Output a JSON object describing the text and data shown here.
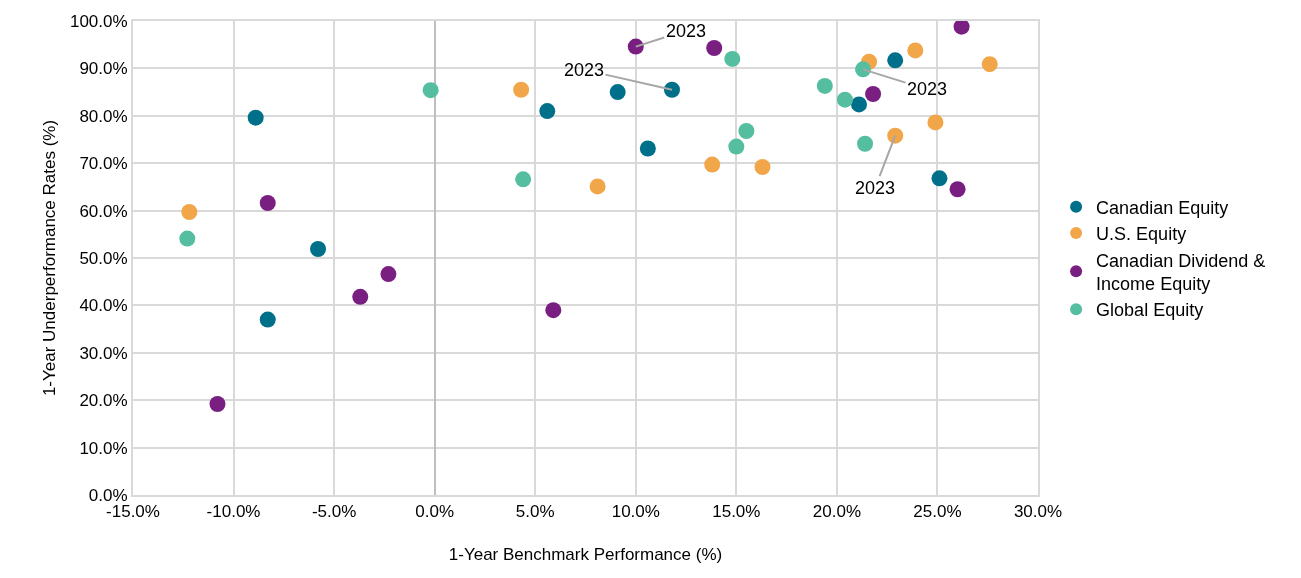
{
  "chart_data": {
    "type": "scatter",
    "xlabel": "1-Year Benchmark Performance (%)",
    "ylabel": "1-Year Underperformance Rates (%)",
    "xlim": [
      -15,
      30
    ],
    "ylim": [
      0,
      100
    ],
    "xticks": [
      {
        "value": -15,
        "label": "-15.0%"
      },
      {
        "value": -10,
        "label": "-10.0%"
      },
      {
        "value": -5,
        "label": "-5.0%"
      },
      {
        "value": 0,
        "label": "0.0%"
      },
      {
        "value": 5,
        "label": "5.0%"
      },
      {
        "value": 10,
        "label": "10.0%"
      },
      {
        "value": 15,
        "label": "15.0%"
      },
      {
        "value": 20,
        "label": "20.0%"
      },
      {
        "value": 25,
        "label": "25.0%"
      },
      {
        "value": 30,
        "label": "30.0%"
      }
    ],
    "yticks": [
      {
        "value": 0,
        "label": "0.0%"
      },
      {
        "value": 10,
        "label": "10.0%"
      },
      {
        "value": 20,
        "label": "20.0%"
      },
      {
        "value": 30,
        "label": "30.0%"
      },
      {
        "value": 40,
        "label": "40.0%"
      },
      {
        "value": 50,
        "label": "50.0%"
      },
      {
        "value": 60,
        "label": "60.0%"
      },
      {
        "value": 70,
        "label": "70.0%"
      },
      {
        "value": 80,
        "label": "80.0%"
      },
      {
        "value": 90,
        "label": "90.0%"
      },
      {
        "value": 100,
        "label": "100.0%"
      }
    ],
    "grid": true,
    "legend": "right",
    "marker": "circle",
    "series": [
      {
        "name": "Canadian Equity",
        "color": "#00708a",
        "x": [
          -8.9,
          -8.3,
          -5.8,
          5.6,
          9.1,
          10.6,
          11.8,
          21.1,
          22.9,
          25.1
        ],
        "values": [
          79.6,
          37.0,
          51.9,
          81.0,
          85.0,
          73.1,
          85.5,
          82.4,
          91.7,
          66.8
        ]
      },
      {
        "name": "U.S. Equity",
        "color": "#f2a64a",
        "x": [
          -12.2,
          4.3,
          8.1,
          13.8,
          16.3,
          21.6,
          22.9,
          23.9,
          24.9,
          27.6
        ],
        "values": [
          59.7,
          85.5,
          65.1,
          69.7,
          69.2,
          91.4,
          75.8,
          93.8,
          78.6,
          90.9
        ]
      },
      {
        "name": "Canadian Dividend & Income Equity",
        "color": "#7a1f82",
        "x": [
          -10.8,
          -8.3,
          -3.7,
          -2.3,
          5.9,
          10.0,
          13.9,
          21.8,
          26.0,
          26.2
        ],
        "values": [
          19.2,
          61.6,
          41.8,
          46.6,
          39.0,
          94.6,
          94.3,
          84.6,
          64.5,
          98.8
        ]
      },
      {
        "name": "Global Equity",
        "color": "#55bea0",
        "x": [
          -12.3,
          -0.2,
          4.4,
          14.8,
          15.0,
          15.5,
          19.4,
          20.4,
          21.3,
          21.4
        ],
        "values": [
          54.1,
          85.4,
          66.6,
          92.0,
          73.5,
          76.8,
          86.3,
          83.4,
          89.8,
          74.1
        ]
      }
    ],
    "annotations": [
      {
        "text": "2023",
        "x": 10.0,
        "y": 94.6
      },
      {
        "text": "2023",
        "x": 11.8,
        "y": 85.5
      },
      {
        "text": "2023",
        "x": 21.3,
        "y": 89.8
      },
      {
        "text": "2023",
        "x": 22.9,
        "y": 75.8
      }
    ]
  }
}
